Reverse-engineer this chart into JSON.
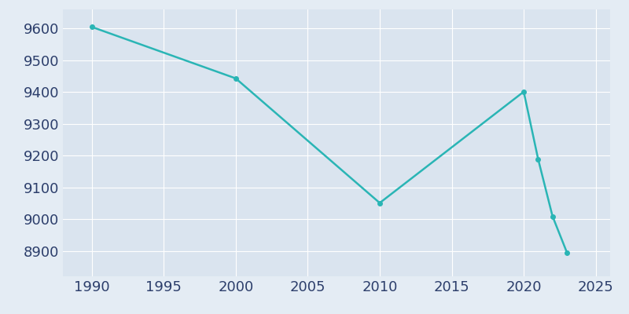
{
  "years": [
    1990,
    2000,
    2010,
    2020,
    2021,
    2022,
    2023
  ],
  "population": [
    9605,
    9443,
    9051,
    9401,
    9189,
    9009,
    8895
  ],
  "line_color": "#2AB5B5",
  "marker": "o",
  "marker_size": 4,
  "bg_color": "#E4ECF4",
  "plot_bg_color": "#DAE4EF",
  "xlim": [
    1988,
    2026
  ],
  "ylim": [
    8820,
    9660
  ],
  "xticks": [
    1990,
    1995,
    2000,
    2005,
    2010,
    2015,
    2020,
    2025
  ],
  "yticks": [
    8900,
    9000,
    9100,
    9200,
    9300,
    9400,
    9500,
    9600
  ],
  "grid_color": "#FFFFFF",
  "tick_color": "#2C3E6B",
  "tick_fontsize": 13,
  "linewidth": 1.8
}
